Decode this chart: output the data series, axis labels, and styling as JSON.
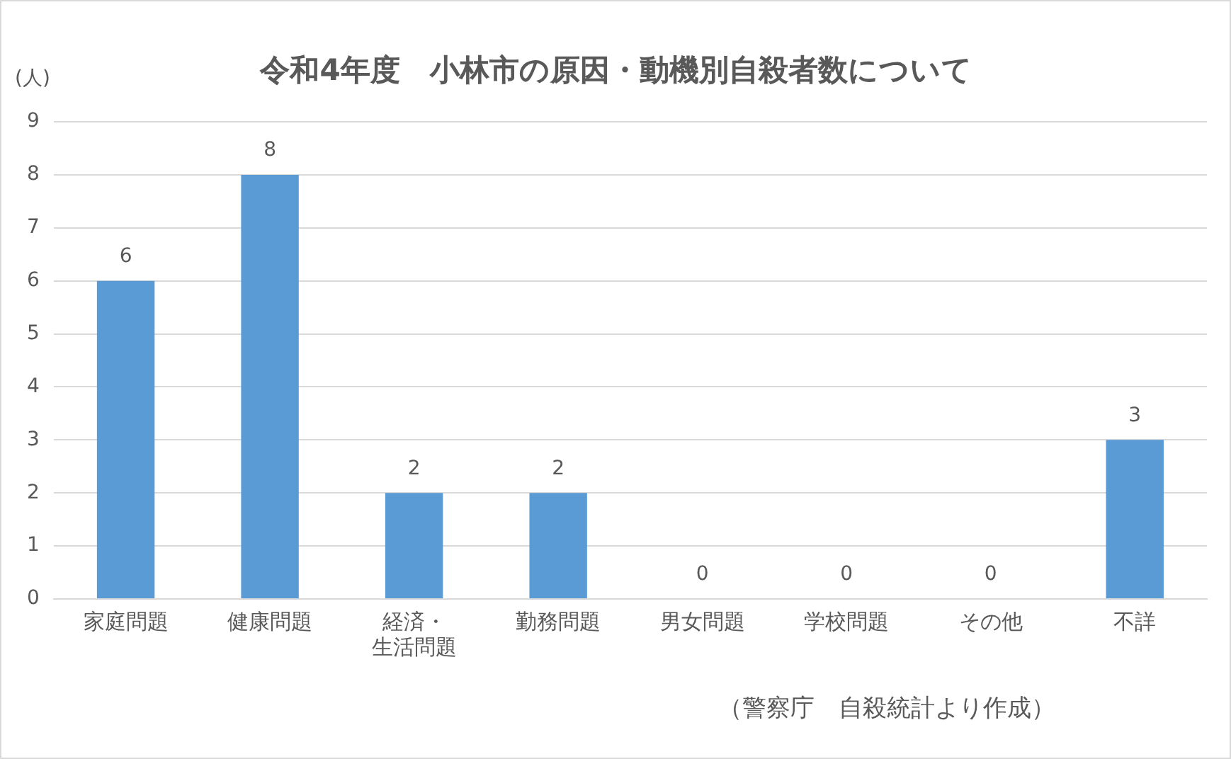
{
  "chart_data": {
    "type": "bar",
    "title": "令和4年度　小林市の原因・動機別自殺者数について",
    "ylabel": "(人)",
    "categories": [
      "家庭問題",
      "健康問題",
      "経済・生活問題",
      "勤務問題",
      "男女問題",
      "学校問題",
      "その他",
      "不詳"
    ],
    "values": [
      6,
      8,
      2,
      2,
      0,
      0,
      0,
      3
    ],
    "color": "#5b9bd5",
    "ylim": [
      0,
      9
    ],
    "yticks": [
      0,
      1,
      2,
      3,
      4,
      5,
      6,
      7,
      8,
      9
    ],
    "grid": "y",
    "data_labels": true,
    "legend": false,
    "annotations": [
      "（警察庁　自殺統計より作成）"
    ]
  }
}
